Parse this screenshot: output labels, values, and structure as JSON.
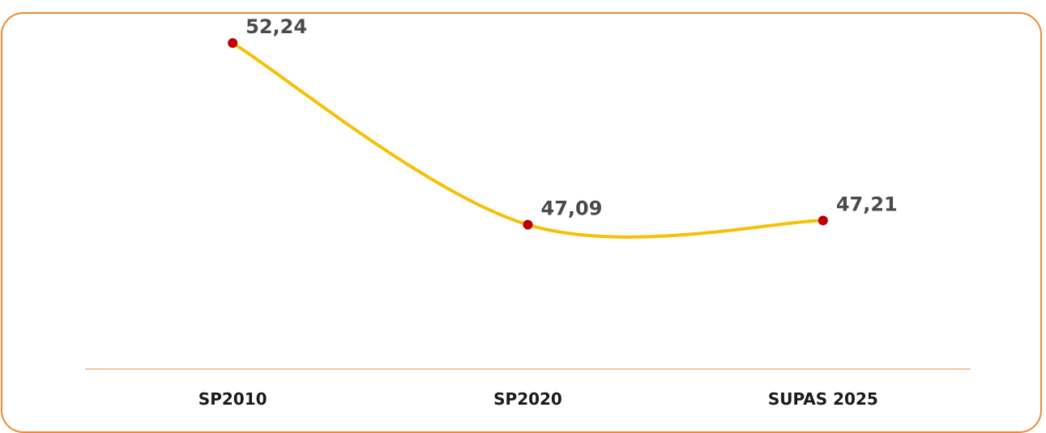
{
  "chart_data": {
    "type": "line",
    "categories": [
      "SP2010",
      "SP2020",
      "SUPAS 2025"
    ],
    "values": [
      52.24,
      47.09,
      47.21
    ],
    "data_labels": [
      "52,24",
      "47,09",
      "47,21"
    ],
    "title": "",
    "xlabel": "",
    "ylabel": "",
    "ylim": [
      43,
      53
    ],
    "smooth": true,
    "grid": false,
    "legend": "none",
    "colors": {
      "line": "#F7C008",
      "marker": "#C00000",
      "axis": "#F4B183",
      "border": "#ED8936"
    }
  }
}
